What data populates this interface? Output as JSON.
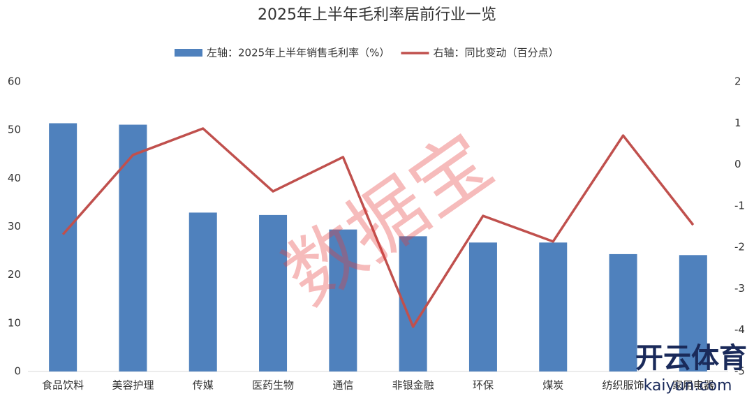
{
  "chart_data": {
    "type": "bar_line",
    "title": "2025年上半年毛利率居前行业一览",
    "categories": [
      "食品饮料",
      "美容护理",
      "传媒",
      "医药生物",
      "通信",
      "非银金融",
      "环保",
      "煤炭",
      "纺织服饰",
      "家用电器"
    ],
    "series": [
      {
        "name": "左轴：2025年上半年销售毛利率（%）",
        "type": "bar",
        "color": "#4f81bd",
        "values": [
          51.4,
          51.1,
          32.9,
          32.4,
          29.4,
          28.0,
          26.7,
          26.7,
          24.3,
          24.1
        ]
      },
      {
        "name": "右轴：同比变动（百分点）",
        "type": "line",
        "axis": "y2",
        "color": "#c0504d",
        "values": [
          -1.69,
          0.23,
          0.87,
          -0.65,
          0.18,
          -3.92,
          -1.24,
          -1.86,
          0.7,
          -1.46
        ]
      }
    ],
    "ylim": [
      0,
      60
    ],
    "yticks": [
      0,
      10,
      20,
      30,
      40,
      50,
      60
    ],
    "y2lim": [
      -5,
      2
    ],
    "y2ticks": [
      -5,
      -4,
      -3,
      -2,
      -1,
      0,
      1,
      2
    ],
    "grid": false,
    "legend": "top",
    "watermarks": [
      "数据宝",
      "开云体育",
      "kaiyun.com"
    ]
  }
}
